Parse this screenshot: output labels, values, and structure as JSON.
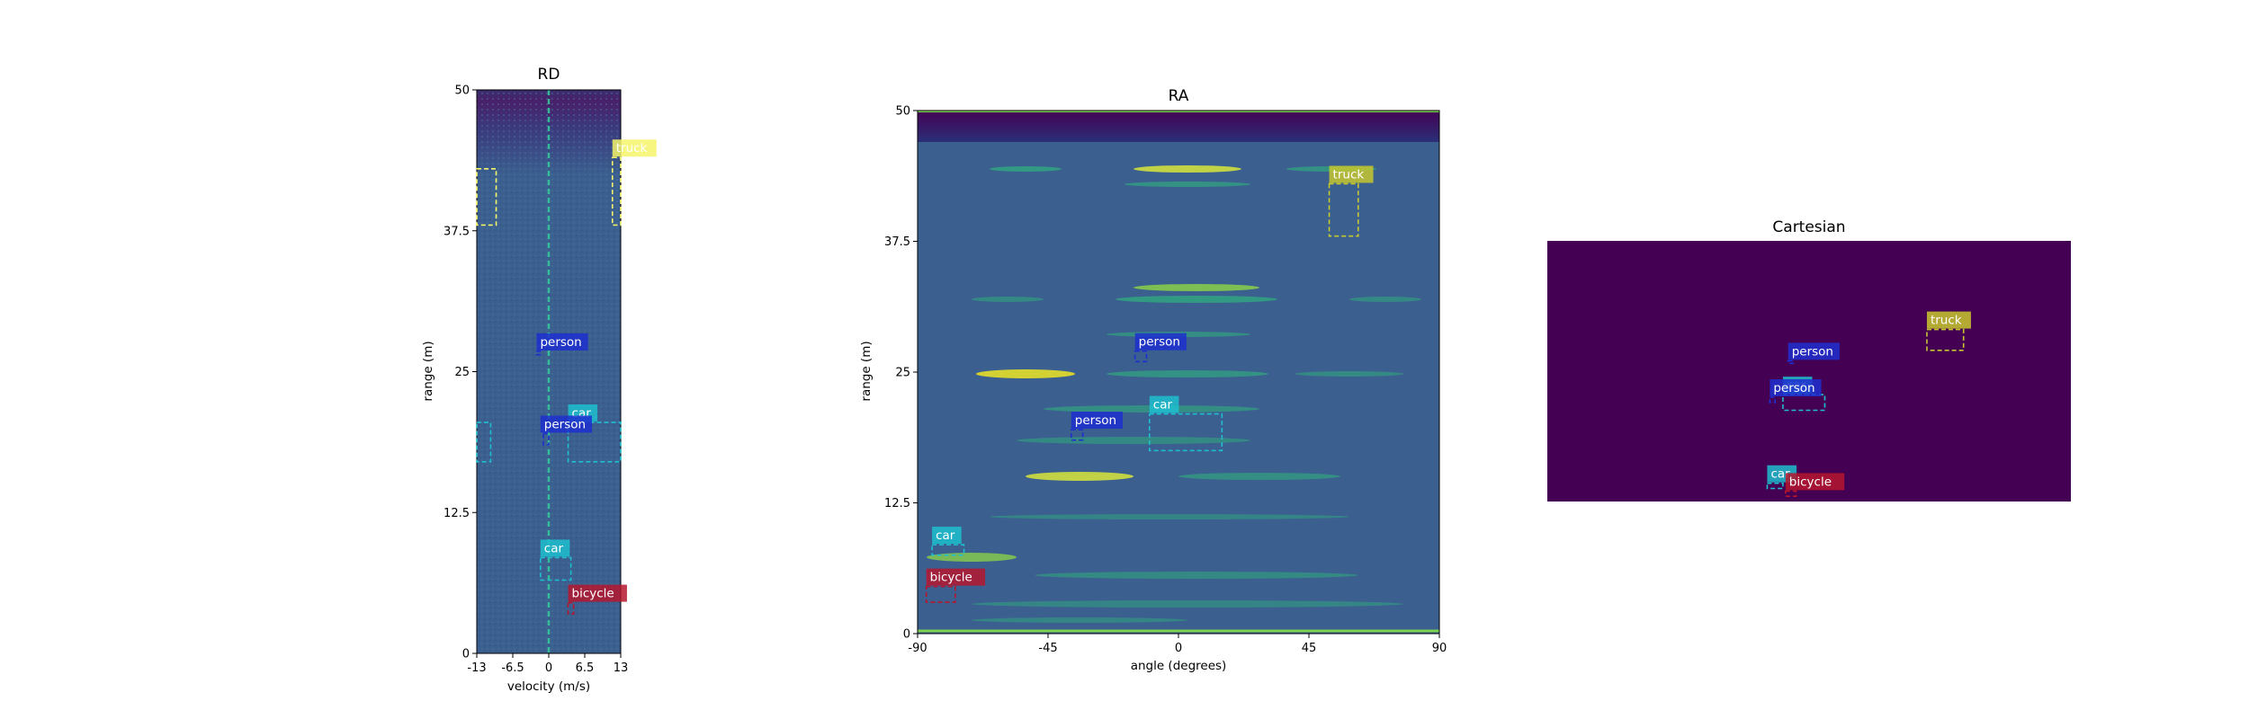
{
  "colors": {
    "car": "#1fbecf",
    "person": "#1f2fcf",
    "bicycle": "#b5162e",
    "truck": "#c7c72e",
    "truck_rd": "#f5f56a"
  },
  "chart_data": [
    {
      "type": "heatmap",
      "title": "RD",
      "xlabel": "velocity (m/s)",
      "ylabel": "range (m)",
      "xlim": [
        -13,
        13
      ],
      "ylim": [
        0,
        50
      ],
      "xticks": [
        "-13",
        "-6.5",
        "0",
        "6.5",
        "13"
      ],
      "yticks": [
        "0",
        "12.5",
        "25",
        "37.5",
        "50"
      ],
      "boxes": [
        {
          "label": "truck",
          "x0": -13,
          "x1": -9.5,
          "y0": 38,
          "y1": 43,
          "tag_x": -13,
          "tag_side": "none"
        },
        {
          "label": "truck",
          "x0": 11.5,
          "x1": 13,
          "y0": 38,
          "y1": 44,
          "tag_x": 11.5,
          "tag_side": "above"
        },
        {
          "label": "person",
          "x0": -2.2,
          "x1": -1.5,
          "y0": 26.5,
          "y1": 26.8,
          "tag_x": -2.2,
          "tag_side": "above"
        },
        {
          "label": "car",
          "x0": -13,
          "x1": -10.5,
          "y0": 17,
          "y1": 20.5,
          "tag_x": -13,
          "tag_side": "none"
        },
        {
          "label": "car",
          "x0": 3.5,
          "x1": 13,
          "y0": 17,
          "y1": 20.5,
          "tag_x": 3.5,
          "tag_side": "above"
        },
        {
          "label": "person",
          "x0": -1,
          "x1": 0,
          "y0": 18.5,
          "y1": 19.5,
          "tag_x": -1.5,
          "tag_side": "above"
        },
        {
          "label": "car",
          "x0": -1.5,
          "x1": 4,
          "y0": 6.5,
          "y1": 8.5,
          "tag_x": -1.5,
          "tag_side": "above"
        },
        {
          "label": "bicycle",
          "x0": 3.5,
          "x1": 4.5,
          "y0": 3.5,
          "y1": 4.5,
          "tag_x": 3.5,
          "tag_side": "above"
        }
      ]
    },
    {
      "type": "heatmap",
      "title": "RA",
      "xlabel": "angle (degrees)",
      "ylabel": "range (m)",
      "xlim": [
        -90,
        90
      ],
      "ylim": [
        0,
        50
      ],
      "xticks": [
        "-90",
        "-45",
        "0",
        "45",
        "90"
      ],
      "yticks": [
        "0",
        "12.5",
        "25",
        "37.5",
        "50"
      ],
      "boxes": [
        {
          "label": "truck",
          "x0": 52,
          "x1": 62,
          "y0": 38,
          "y1": 43,
          "tag_x": 52,
          "tag_side": "above"
        },
        {
          "label": "person",
          "x0": -15,
          "x1": -11,
          "y0": 26,
          "y1": 27,
          "tag_x": -15,
          "tag_side": "above"
        },
        {
          "label": "car",
          "x0": -10,
          "x1": 15,
          "y0": 17.5,
          "y1": 21,
          "tag_x": -10,
          "tag_side": "above"
        },
        {
          "label": "person",
          "x0": -37,
          "x1": -33,
          "y0": 18.5,
          "y1": 19.5,
          "tag_x": -37,
          "tag_side": "above"
        },
        {
          "label": "car",
          "x0": -85,
          "x1": -74,
          "y0": 7.5,
          "y1": 8.5,
          "tag_x": -85,
          "tag_side": "above"
        },
        {
          "label": "bicycle",
          "x0": -87,
          "x1": -77,
          "y0": 3,
          "y1": 4.5,
          "tag_x": -87,
          "tag_side": "above"
        }
      ]
    },
    {
      "type": "scatter",
      "title": "Cartesian",
      "xlim": [
        -50,
        50
      ],
      "ylim": [
        0,
        50
      ],
      "boxes": [
        {
          "label": "truck",
          "x0": 22.5,
          "x1": 29.5,
          "y0": 29,
          "y1": 33,
          "tag_x": 22.5,
          "tag_side": "above"
        },
        {
          "label": "person",
          "x0": -4,
          "x1": -3,
          "y0": 26.5,
          "y1": 27,
          "tag_x": -4,
          "tag_side": "above"
        },
        {
          "label": "car",
          "x0": -5,
          "x1": 3,
          "y0": 17.5,
          "y1": 20.5,
          "tag_x": -5,
          "tag_side": "above"
        },
        {
          "label": "person",
          "x0": -7.5,
          "x1": -6.5,
          "y0": 19,
          "y1": 20,
          "tag_x": -7.5,
          "tag_side": "above"
        },
        {
          "label": "car",
          "x0": -8,
          "x1": -5,
          "y0": 2.5,
          "y1": 3.5,
          "tag_x": -8,
          "tag_side": "above"
        },
        {
          "label": "bicycle",
          "x0": -4.5,
          "x1": -2.5,
          "y0": 1,
          "y1": 2,
          "tag_x": -4.5,
          "tag_side": "above"
        }
      ]
    }
  ]
}
